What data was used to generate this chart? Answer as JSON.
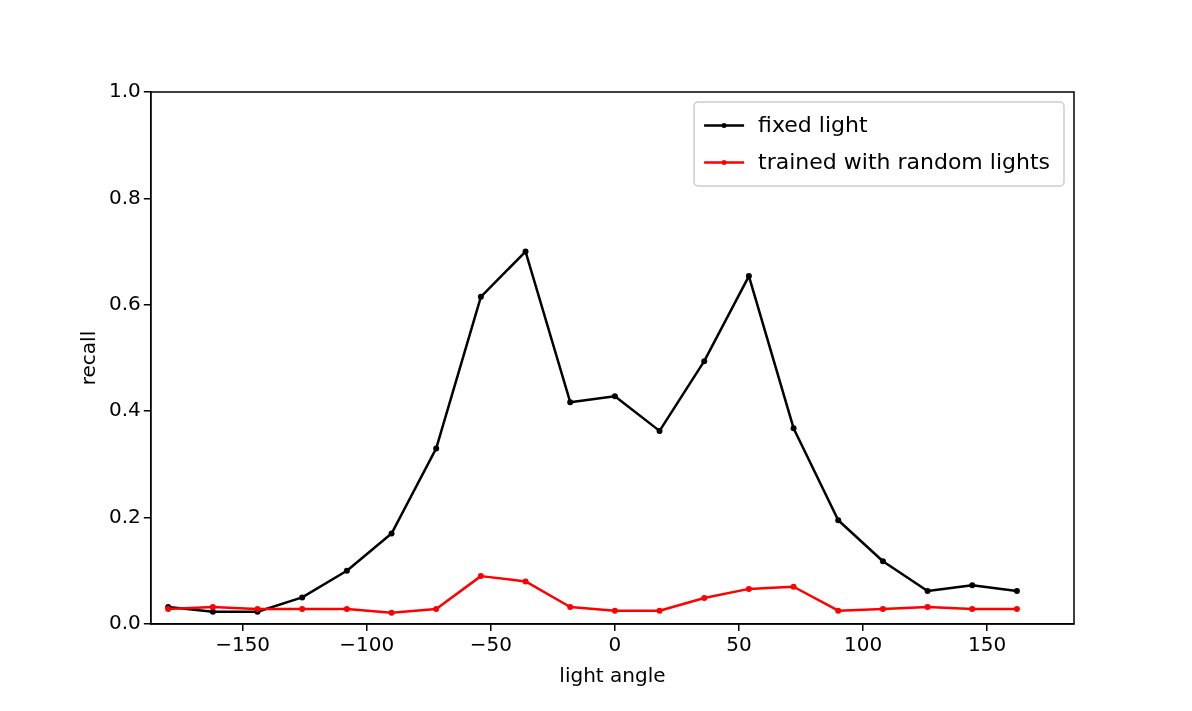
{
  "chart_data": {
    "type": "line",
    "xlabel": "light angle",
    "ylabel": "recall",
    "x": [
      -180,
      -162,
      -144,
      -126,
      -108,
      -90,
      -72,
      -54,
      -36,
      -18,
      0,
      18,
      36,
      54,
      72,
      90,
      108,
      126,
      144,
      162
    ],
    "series": [
      {
        "name": "fixed light",
        "color": "#000000",
        "values": [
          0.032,
          0.023,
          0.023,
          0.05,
          0.1,
          0.17,
          0.33,
          0.615,
          0.7,
          0.417,
          0.428,
          0.363,
          0.494,
          0.654,
          0.368,
          0.195,
          0.118,
          0.062,
          0.073,
          0.062
        ]
      },
      {
        "name": "trained with random lights",
        "color": "#ff0000",
        "values": [
          0.028,
          0.032,
          0.028,
          0.028,
          0.028,
          0.021,
          0.028,
          0.09,
          0.08,
          0.032,
          0.025,
          0.025,
          0.049,
          0.066,
          0.07,
          0.025,
          0.028,
          0.032,
          0.028,
          0.028
        ]
      }
    ],
    "xlim": [
      -187,
      185
    ],
    "xticks": [
      {
        "value": -150,
        "label": "−150"
      },
      {
        "value": -100,
        "label": "−100"
      },
      {
        "value": -50,
        "label": "−50"
      },
      0,
      50,
      100,
      150
    ],
    "ylim": [
      0,
      1
    ],
    "yticks": [
      {
        "value": 0,
        "label": "0.0"
      },
      0.2,
      0.4,
      0.6,
      0.8,
      {
        "value": 1,
        "label": "1.0"
      }
    ],
    "grid": false,
    "legend": "top right",
    "marker": "circle",
    "line_style": "solid"
  }
}
